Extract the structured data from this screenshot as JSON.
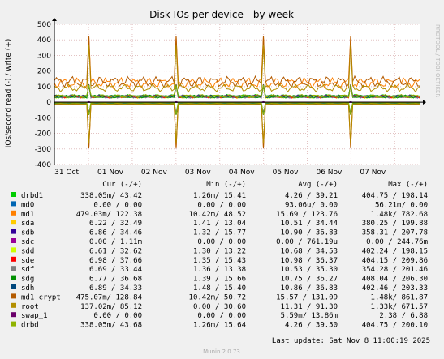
{
  "chart_data": {
    "type": "line",
    "title": "Disk IOs per device - by week",
    "ylabel": "IOs/second read (-) / write (+)",
    "ylim": [
      -400,
      500
    ],
    "yticks": [
      500,
      400,
      300,
      200,
      100,
      0,
      -100,
      -200,
      -300,
      -400
    ],
    "ytick_labels": [
      "500",
      "400",
      "300",
      "200",
      "100",
      "0",
      "-100",
      "-200",
      "-300",
      "-400"
    ],
    "xticks": [
      "31 Oct",
      "01 Nov",
      "02 Nov",
      "03 Nov",
      "04 Nov",
      "05 Nov",
      "06 Nov",
      "07 Nov"
    ],
    "grid": true,
    "watermark": "RRDTOOL / TOBI OETIKER",
    "legend_header": {
      "cur": "Cur (-/+)",
      "min": "Min (-/+)",
      "avg": "Avg (-/+)",
      "max": "Max (-/+)"
    },
    "series": [
      {
        "name": "drbd1",
        "color": "#00cc00",
        "cur": "338.05m/ 43.42",
        "min": "1.26m/ 15.41",
        "avg": "4.26 / 39.21",
        "max": "404.75 / 198.14"
      },
      {
        "name": "md0",
        "color": "#0066b3",
        "cur": "0.00 / 0.00",
        "min": "0.00 / 0.00",
        "avg": "93.06u/ 0.00",
        "max": "56.21m/ 0.00"
      },
      {
        "name": "md1",
        "color": "#ff8000",
        "cur": "479.03m/ 122.38",
        "min": "10.42m/ 48.52",
        "avg": "15.69 / 123.76",
        "max": "1.48k/ 782.68"
      },
      {
        "name": "sda",
        "color": "#ffcc00",
        "cur": "6.22 / 32.49",
        "min": "1.41 / 13.04",
        "avg": "10.51 / 34.44",
        "max": "380.25 / 199.88"
      },
      {
        "name": "sdb",
        "color": "#330099",
        "cur": "6.86 / 34.46",
        "min": "1.32 / 15.77",
        "avg": "10.90 / 36.83",
        "max": "358.31 / 207.78"
      },
      {
        "name": "sdc",
        "color": "#990099",
        "cur": "0.00 / 1.11m",
        "min": "0.00 / 0.00",
        "avg": "0.00 / 761.19u",
        "max": "0.00 / 244.76m"
      },
      {
        "name": "sdd",
        "color": "#ccff00",
        "cur": "6.61 / 32.62",
        "min": "1.30 / 13.22",
        "avg": "10.68 / 34.53",
        "max": "402.24 / 198.15"
      },
      {
        "name": "sde",
        "color": "#ff0000",
        "cur": "6.98 / 37.66",
        "min": "1.35 / 15.43",
        "avg": "10.98 / 36.37",
        "max": "404.15 / 209.86"
      },
      {
        "name": "sdf",
        "color": "#808080",
        "cur": "6.69 / 33.44",
        "min": "1.36 / 13.38",
        "avg": "10.53 / 35.30",
        "max": "354.28 / 201.46"
      },
      {
        "name": "sdg",
        "color": "#008f00",
        "cur": "6.77 / 36.68",
        "min": "1.39 / 15.66",
        "avg": "10.75 / 36.27",
        "max": "408.04 / 206.30"
      },
      {
        "name": "sdh",
        "color": "#00487d",
        "cur": "6.89 / 34.33",
        "min": "1.48 / 15.40",
        "avg": "10.86 / 36.83",
        "max": "402.46 / 203.33"
      },
      {
        "name": "md1_crypt",
        "color": "#b35a00",
        "cur": "475.07m/ 128.84",
        "min": "10.42m/ 50.72",
        "avg": "15.57 / 131.09",
        "max": "1.48k/ 861.87"
      },
      {
        "name": "root",
        "color": "#b38f00",
        "cur": "137.02m/ 85.12",
        "min": "0.00 / 30.60",
        "avg": "11.31 / 91.30",
        "max": "1.33k/ 671.57"
      },
      {
        "name": "swap_1",
        "color": "#6b006b",
        "cur": "0.00 / 0.00",
        "min": "0.00 / 0.00",
        "avg": "5.59m/ 13.86m",
        "max": "2.38 / 6.88"
      },
      {
        "name": "drbd",
        "color": "#8fb300",
        "cur": "338.05m/ 43.68",
        "min": "1.26m/ 15.64",
        "avg": "4.26 / 39.50",
        "max": "404.75 / 200.10"
      }
    ],
    "last_update": "Last update: Sat Nov 8 11:00:19 2025",
    "footer": "Munin 2.0.73"
  }
}
